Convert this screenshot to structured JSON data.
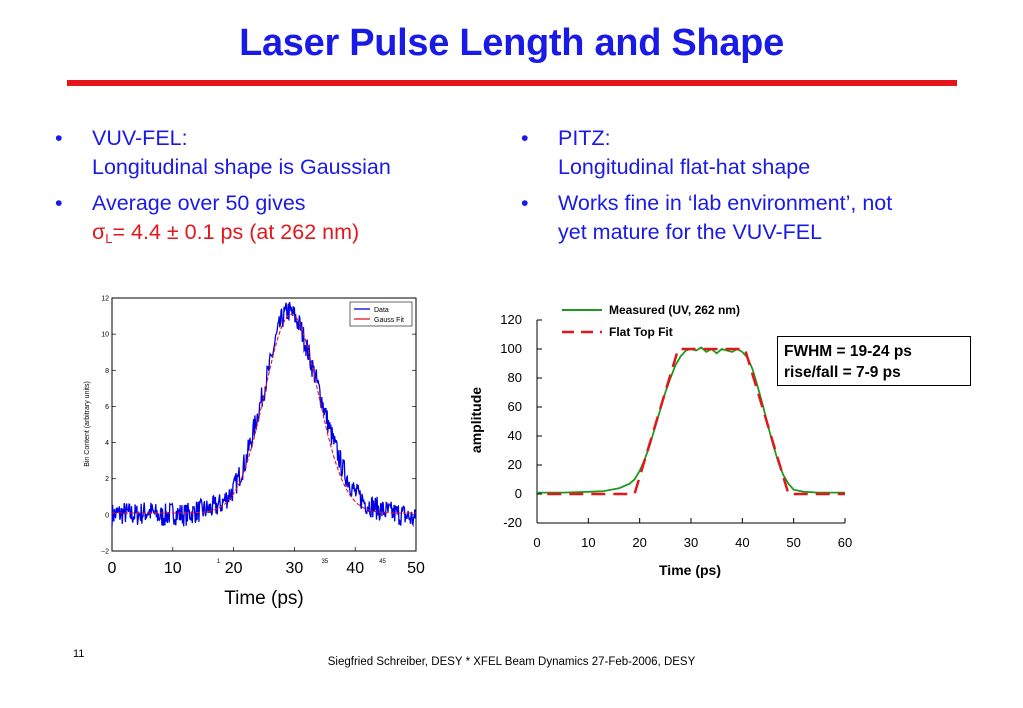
{
  "title": "Laser Pulse Length and Shape",
  "left_bullets": [
    {
      "line1": "VUV-FEL:",
      "line2": "Longitudinal shape is Gaussian"
    },
    {
      "line1": "Average over 50 gives",
      "sigma_symbol": "σ",
      "sigma_sub": "L",
      "sigma_value": "= 4.4 ± 0.1 ps (at 262 nm)"
    }
  ],
  "right_bullets": [
    {
      "line1": "PITZ:",
      "line2": "Longitudinal flat-hat shape"
    },
    {
      "line1": "Works fine in ‘lab environment’, not",
      "line2": "yet mature for the VUV-FEL"
    }
  ],
  "bullet_char": "•",
  "colors": {
    "title": "#1a1ae6",
    "rule": "#e3161c",
    "sigma": "#e3161c",
    "data": "#0000e6",
    "fit": "#e3161c",
    "measured": "#1e9a1e",
    "flat_fit": "#e3161c"
  },
  "chart_data": [
    {
      "type": "line",
      "ylabel": "Bin Content (arbitrary units)",
      "xlabel": "Time (ps)",
      "x_ticks": [
        "0",
        "10",
        "20",
        "30",
        "40",
        "50"
      ],
      "inner_x_ticks": [
        "1",
        "35",
        "45"
      ],
      "y_ticks": [
        "−2",
        "0",
        "2",
        "4",
        "6",
        "8",
        "10",
        "12"
      ],
      "ylim": [
        -2,
        12
      ],
      "xlim": [
        0,
        50
      ],
      "legend": [
        "Data",
        "Gauss Fit"
      ],
      "legend_position": "top-right",
      "series": [
        {
          "name": "Data",
          "x": [
            0,
            2,
            4,
            6,
            8,
            10,
            12,
            14,
            16,
            18,
            20,
            22,
            24,
            26,
            27,
            28,
            29,
            30,
            31,
            32,
            34,
            36,
            38,
            40,
            42,
            44,
            46,
            48,
            50
          ],
          "values": [
            0.0,
            0.1,
            0.0,
            0.2,
            -0.1,
            0.1,
            0.0,
            0.2,
            0.3,
            0.6,
            1.4,
            3.0,
            5.6,
            8.3,
            9.8,
            10.9,
            11.3,
            11.0,
            10.4,
            9.3,
            7.0,
            4.5,
            2.5,
            1.2,
            0.6,
            0.3,
            0.1,
            0.0,
            -0.3
          ]
        },
        {
          "name": "Gauss Fit",
          "gaussian": {
            "amplitude": 11.0,
            "center": 29.5,
            "sigma": 4.4,
            "baseline": 0.1
          }
        }
      ]
    },
    {
      "type": "line",
      "xlabel": "Time (ps)",
      "ylabel": "amplitude",
      "x_ticks": [
        "0",
        "10",
        "20",
        "30",
        "40",
        "50",
        "60"
      ],
      "y_ticks": [
        "-20",
        "0",
        "20",
        "40",
        "60",
        "80",
        "100",
        "120"
      ],
      "xlim": [
        0,
        60
      ],
      "ylim": [
        -20,
        120
      ],
      "legend": [
        "Measured (UV, 262 nm)",
        "Flat Top Fit"
      ],
      "legend_position": "top",
      "series": [
        {
          "name": "Measured (UV, 262 nm)",
          "x": [
            0,
            5,
            10,
            13,
            16,
            18,
            19,
            20,
            21,
            22,
            23,
            24,
            25,
            26,
            27,
            28,
            29,
            30,
            31,
            32,
            33,
            34,
            35,
            36,
            37,
            38,
            39,
            40,
            41,
            42,
            43,
            44,
            45,
            46,
            47,
            48,
            49,
            50,
            52,
            55,
            60
          ],
          "values": [
            1,
            1,
            1.5,
            2,
            4,
            7,
            10,
            16,
            24,
            34,
            46,
            58,
            70,
            80,
            89,
            95,
            99,
            100,
            99,
            101,
            98,
            100,
            97,
            100,
            99,
            98,
            100,
            98,
            94,
            86,
            74,
            61,
            47,
            34,
            22,
            13,
            7,
            3,
            1.5,
            1,
            1
          ]
        },
        {
          "name": "Flat Top Fit",
          "x": [
            2,
            19,
            27.5,
            40.5,
            49,
            60
          ],
          "values": [
            0,
            0,
            100,
            100,
            0,
            0
          ]
        }
      ]
    }
  ],
  "fwhm_box": {
    "line1": "FWHM = 19-24 ps",
    "line2": "rise/fall = 7-9 ps"
  },
  "page_number": "11",
  "footer": "Siegfried Schreiber, DESY  * XFEL Beam Dynamics 27-Feb-2006, DESY"
}
